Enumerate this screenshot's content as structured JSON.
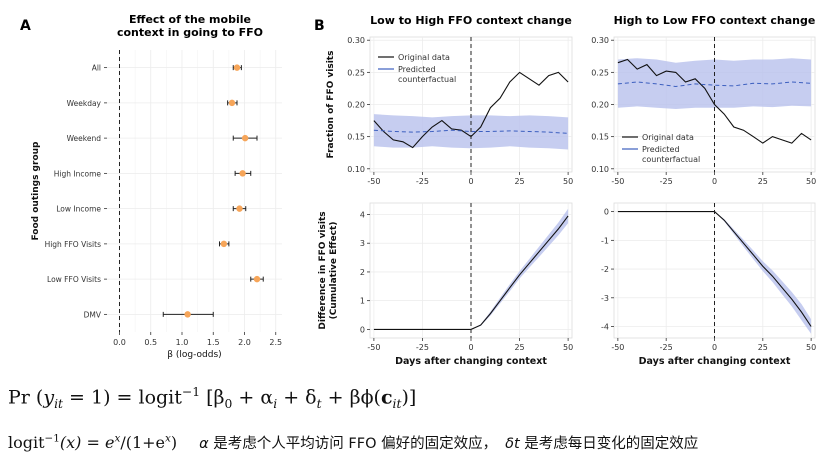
{
  "chart_data": [
    {
      "id": "A",
      "panel_letter": "A",
      "type": "forest",
      "title": "Effect of the mobile\ncontext in going to FFO",
      "title_lines": [
        "Effect of the mobile",
        "context in going to FFO"
      ],
      "xlabel": "β (log-odds)",
      "ylabel": "Food outings group",
      "xlim": [
        -0.2,
        2.6
      ],
      "xticks": [
        0,
        0.5,
        1,
        1.5,
        2,
        2.5
      ],
      "xtick_labels": [
        "0.0",
        "0.5",
        "1.0",
        "1.5",
        "2.0",
        "2.5"
      ],
      "categories": [
        "All",
        "Weekday",
        "Weekend",
        "High Income",
        "Low Income",
        "High FFO Visits",
        "Low FFO Visits",
        "DMV"
      ],
      "estimates": [
        1.88,
        1.8,
        2.01,
        1.97,
        1.92,
        1.67,
        2.2,
        1.09
      ],
      "ci_low": [
        1.82,
        1.73,
        1.82,
        1.85,
        1.82,
        1.6,
        2.1,
        0.7
      ],
      "ci_high": [
        1.95,
        1.88,
        2.2,
        2.1,
        2.02,
        1.75,
        2.3,
        1.5
      ],
      "marker_color": "#F6A559"
    },
    {
      "id": "B",
      "panel_letter": "B",
      "type": "line",
      "title": "Low to High FFO context change",
      "xlabel": "",
      "ylabel": "Fraction of FFO visits",
      "xlim": [
        -52,
        52
      ],
      "ylim": [
        0.095,
        0.305
      ],
      "xticks": [
        -50,
        -25,
        0,
        25,
        50
      ],
      "yticks": [
        0.1,
        0.15,
        0.2,
        0.25,
        0.3
      ],
      "ytick_labels": [
        "0.10",
        "0.15",
        "0.20",
        "0.25",
        "0.30"
      ],
      "vline": 0,
      "legend": {
        "entries": [
          "Original data",
          "Predicted\ncounterfactual"
        ],
        "position": "top-left"
      },
      "series": [
        {
          "name": "Original data",
          "x": [
            -50,
            -45,
            -40,
            -35,
            -30,
            -25,
            -20,
            -15,
            -10,
            -5,
            0,
            5,
            10,
            15,
            20,
            25,
            30,
            35,
            40,
            45,
            50
          ],
          "values": [
            0.175,
            0.158,
            0.145,
            0.142,
            0.133,
            0.15,
            0.165,
            0.175,
            0.162,
            0.16,
            0.15,
            0.165,
            0.195,
            0.21,
            0.235,
            0.25,
            0.24,
            0.23,
            0.245,
            0.25,
            0.235
          ]
        },
        {
          "name": "Predicted counterfactual",
          "x": [
            -50,
            -40,
            -30,
            -20,
            -10,
            0,
            10,
            20,
            30,
            40,
            50
          ],
          "values": [
            0.16,
            0.158,
            0.157,
            0.158,
            0.16,
            0.158,
            0.158,
            0.159,
            0.158,
            0.157,
            0.155
          ],
          "band_low": [
            0.135,
            0.133,
            0.133,
            0.135,
            0.133,
            0.132,
            0.133,
            0.135,
            0.133,
            0.132,
            0.13
          ],
          "band_high": [
            0.185,
            0.183,
            0.182,
            0.18,
            0.182,
            0.183,
            0.183,
            0.182,
            0.183,
            0.182,
            0.18
          ]
        }
      ]
    },
    {
      "id": "C",
      "type": "line",
      "title": "High to Low FFO context change",
      "xlabel": "",
      "ylabel": "",
      "xlim": [
        -52,
        52
      ],
      "ylim": [
        0.095,
        0.305
      ],
      "xticks": [
        -50,
        -25,
        0,
        25,
        50
      ],
      "yticks": [
        0.1,
        0.15,
        0.2,
        0.25,
        0.3
      ],
      "ytick_labels": [
        "0.10",
        "0.15",
        "0.20",
        "0.25",
        "0.30"
      ],
      "vline": 0,
      "legend": {
        "entries": [
          "Original data",
          "Predicted\ncounterfactual"
        ],
        "position": "bottom-center"
      },
      "series": [
        {
          "name": "Original data",
          "x": [
            -50,
            -45,
            -40,
            -35,
            -30,
            -25,
            -20,
            -15,
            -10,
            -5,
            0,
            5,
            10,
            15,
            20,
            25,
            30,
            35,
            40,
            45,
            50
          ],
          "values": [
            0.265,
            0.27,
            0.255,
            0.262,
            0.245,
            0.252,
            0.25,
            0.235,
            0.24,
            0.225,
            0.2,
            0.185,
            0.165,
            0.16,
            0.15,
            0.14,
            0.15,
            0.145,
            0.14,
            0.155,
            0.145
          ]
        },
        {
          "name": "Predicted counterfactual",
          "x": [
            -50,
            -40,
            -30,
            -20,
            -10,
            0,
            10,
            20,
            30,
            40,
            50
          ],
          "values": [
            0.232,
            0.235,
            0.232,
            0.228,
            0.232,
            0.23,
            0.229,
            0.233,
            0.232,
            0.235,
            0.233
          ],
          "band_low": [
            0.195,
            0.197,
            0.195,
            0.193,
            0.195,
            0.195,
            0.195,
            0.197,
            0.196,
            0.198,
            0.197
          ],
          "band_high": [
            0.27,
            0.272,
            0.27,
            0.265,
            0.268,
            0.27,
            0.268,
            0.27,
            0.27,
            0.272,
            0.27
          ]
        }
      ]
    },
    {
      "id": "D",
      "type": "line",
      "title": "",
      "xlabel": "Days after changing context",
      "ylabel": "Difference in FFO visits\n(Cumulative Effect)",
      "ylabel_lines": [
        "Difference in FFO visits",
        "(Cumulative Effect)"
      ],
      "xlim": [
        -52,
        52
      ],
      "ylim": [
        -0.3,
        4.4
      ],
      "xticks": [
        -50,
        -25,
        0,
        25,
        50
      ],
      "yticks": [
        0,
        1,
        2,
        3,
        4
      ],
      "vline": 0,
      "series": [
        {
          "name": "Cumulative effect",
          "x": [
            -50,
            -25,
            0,
            5,
            10,
            15,
            20,
            25,
            30,
            35,
            40,
            45,
            50
          ],
          "values": [
            0,
            0,
            0,
            0.15,
            0.55,
            1.0,
            1.45,
            1.9,
            2.3,
            2.7,
            3.1,
            3.5,
            3.95
          ],
          "band_low": [
            0,
            0,
            0,
            0.12,
            0.48,
            0.9,
            1.33,
            1.77,
            2.15,
            2.52,
            2.9,
            3.28,
            3.7
          ],
          "band_high": [
            0,
            0,
            0,
            0.18,
            0.62,
            1.1,
            1.57,
            2.03,
            2.45,
            2.88,
            3.3,
            3.72,
            4.2
          ]
        }
      ]
    },
    {
      "id": "E",
      "type": "line",
      "title": "",
      "xlabel": "Days after changing context",
      "ylabel": "",
      "xlim": [
        -52,
        52
      ],
      "ylim": [
        -4.4,
        0.3
      ],
      "xticks": [
        -50,
        -25,
        0,
        25,
        50
      ],
      "yticks": [
        0,
        -1,
        -2,
        -3,
        -4
      ],
      "vline": 0,
      "series": [
        {
          "name": "Cumulative effect",
          "x": [
            -50,
            -25,
            0,
            5,
            10,
            15,
            20,
            25,
            30,
            35,
            40,
            45,
            50
          ],
          "values": [
            0,
            0,
            0,
            -0.3,
            -0.7,
            -1.1,
            -1.5,
            -1.9,
            -2.25,
            -2.65,
            -3.05,
            -3.5,
            -4.0
          ],
          "band_low": [
            0,
            0,
            0,
            -0.34,
            -0.78,
            -1.22,
            -1.65,
            -2.07,
            -2.45,
            -2.88,
            -3.3,
            -3.78,
            -4.25
          ],
          "band_high": [
            0,
            0,
            0,
            -0.26,
            -0.62,
            -0.98,
            -1.35,
            -1.73,
            -2.05,
            -2.42,
            -2.8,
            -3.22,
            -3.75
          ]
        }
      ]
    }
  ],
  "equations": {
    "eq1": {
      "lhs_pr": "Pr",
      "lhs_paren_open": "(",
      "lhs_y": "y",
      "lhs_sub": "it",
      "lhs_eq1": " = 1)",
      "equals": " = ",
      "logit": "logit",
      "sup_inv": "−1",
      "rhs_body": " [β",
      "sub0": "0",
      "plus_alpha": " + α",
      "sub_i": "i",
      "plus_delta": " + δ",
      "sub_t": "t",
      "plus_beta": " + βϕ(",
      "bold_c": "c",
      "sub_it": "it",
      "close": ")]"
    },
    "eq2": {
      "logit": "logit",
      "sup_inv": "−1",
      "arg": "(x) = e",
      "sup_x": "x",
      "denom": "/(1+e",
      "sup_x2": "x",
      "close": ")"
    },
    "note_alpha_symbol": "α",
    "note_alpha_text": "是考虑个人平均访问 FFO 偏好的固定效应，",
    "note_delta_symbol": "δt",
    "note_delta_text": "是考虑每日变化的固定效应"
  }
}
